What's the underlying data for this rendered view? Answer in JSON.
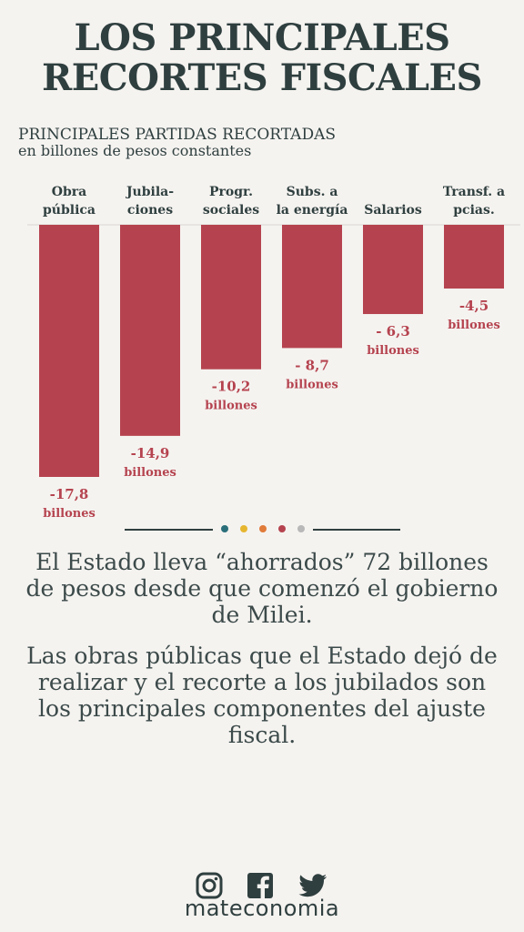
{
  "header": {
    "title_line1": "LOS PRINCIPALES",
    "title_line2": "RECORTES FISCALES"
  },
  "subtitle": {
    "main": "PRINCIPALES PARTIDAS RECORTADAS",
    "units": "en billones de pesos constantes"
  },
  "chart_data": {
    "type": "bar",
    "title": "PRINCIPALES PARTIDAS RECORTADAS",
    "subtitle": "en billones de pesos constantes",
    "categories": [
      [
        "Obra",
        "pública"
      ],
      [
        "Jubila-",
        "ciones"
      ],
      [
        "Progr.",
        "sociales"
      ],
      [
        "Subs. a",
        "la energía"
      ],
      [
        "Salarios"
      ],
      [
        "Transf. a",
        "pcias."
      ]
    ],
    "values": [
      -17.8,
      -14.9,
      -10.2,
      -8.7,
      -6.3,
      -4.5
    ],
    "value_labels": [
      "-17,8",
      "-14,9",
      "-10,2",
      "- 8,7",
      "- 6,3",
      "-4,5"
    ],
    "unit_label": "billones",
    "ylim": [
      -17.8,
      0
    ],
    "grid": false,
    "bar_color": "#b5434f"
  },
  "divider": {
    "dot_colors": [
      "#2a6f7a",
      "#e6b630",
      "#e07b39",
      "#b5434f",
      "#b8b8b8"
    ]
  },
  "text": {
    "paragraph1": "El Estado lleva “ahorrados” 72 billones de pesos desde que comenzó el gobierno de Milei.",
    "paragraph2": "Las obras públicas que el Estado dejó de realizar y el recorte a los jubilados son los principales componentes del ajuste fiscal."
  },
  "footer": {
    "social_icons": [
      "instagram-icon",
      "facebook-icon",
      "twitter-icon"
    ],
    "brand": "mateconomia"
  }
}
